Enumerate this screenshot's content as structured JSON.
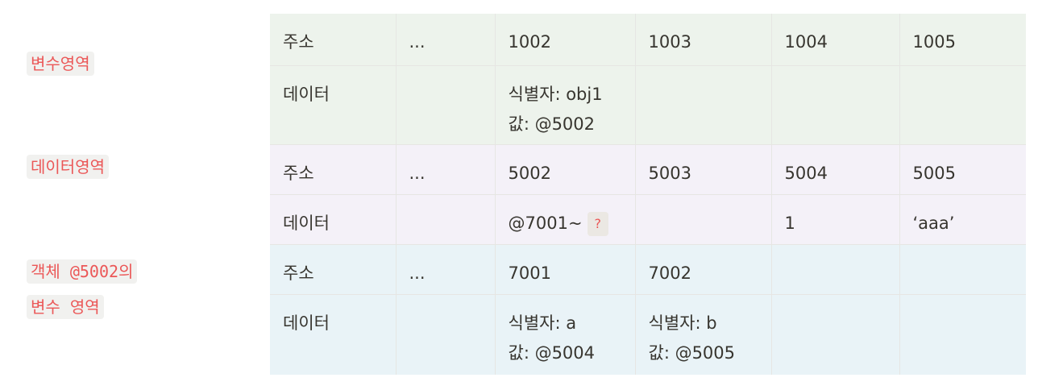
{
  "labels": {
    "variable_area": "변수영역",
    "data_area": "데이터영역",
    "object_var_area_line1": "객체 @5002의",
    "object_var_area_line2": "변수 영역"
  },
  "table": {
    "variable_area": {
      "address_label": "주소",
      "addresses": [
        "...",
        "1002",
        "1003",
        "1004",
        "1005"
      ],
      "data_label": "데이터",
      "data": {
        "c1002_line1": "식별자: obj1",
        "c1002_line2": "값: @5002"
      }
    },
    "data_area": {
      "address_label": "주소",
      "addresses": [
        "...",
        "5002",
        "5003",
        "5004",
        "5005"
      ],
      "data_label": "데이터",
      "data": {
        "c5002": "@7001~",
        "c5002_badge": "?",
        "c5004": "1",
        "c5005": "‘aaa’"
      }
    },
    "object_var_area": {
      "address_label": "주소",
      "addresses": [
        "...",
        "7001",
        "7002",
        "",
        ""
      ],
      "data_label": "데이터",
      "data": {
        "c7001_line1": "식별자: a",
        "c7001_line2": "값: @5004",
        "c7002_line1": "식별자: b",
        "c7002_line2": "값: @5005"
      }
    }
  },
  "colors": {
    "tag_text": "#eb5757",
    "tag_bg": "#f1f1ef",
    "variable_area_bg": "#edf3ec",
    "data_area_bg": "#f4f1f8",
    "object_area_bg": "#e9f3f7"
  }
}
